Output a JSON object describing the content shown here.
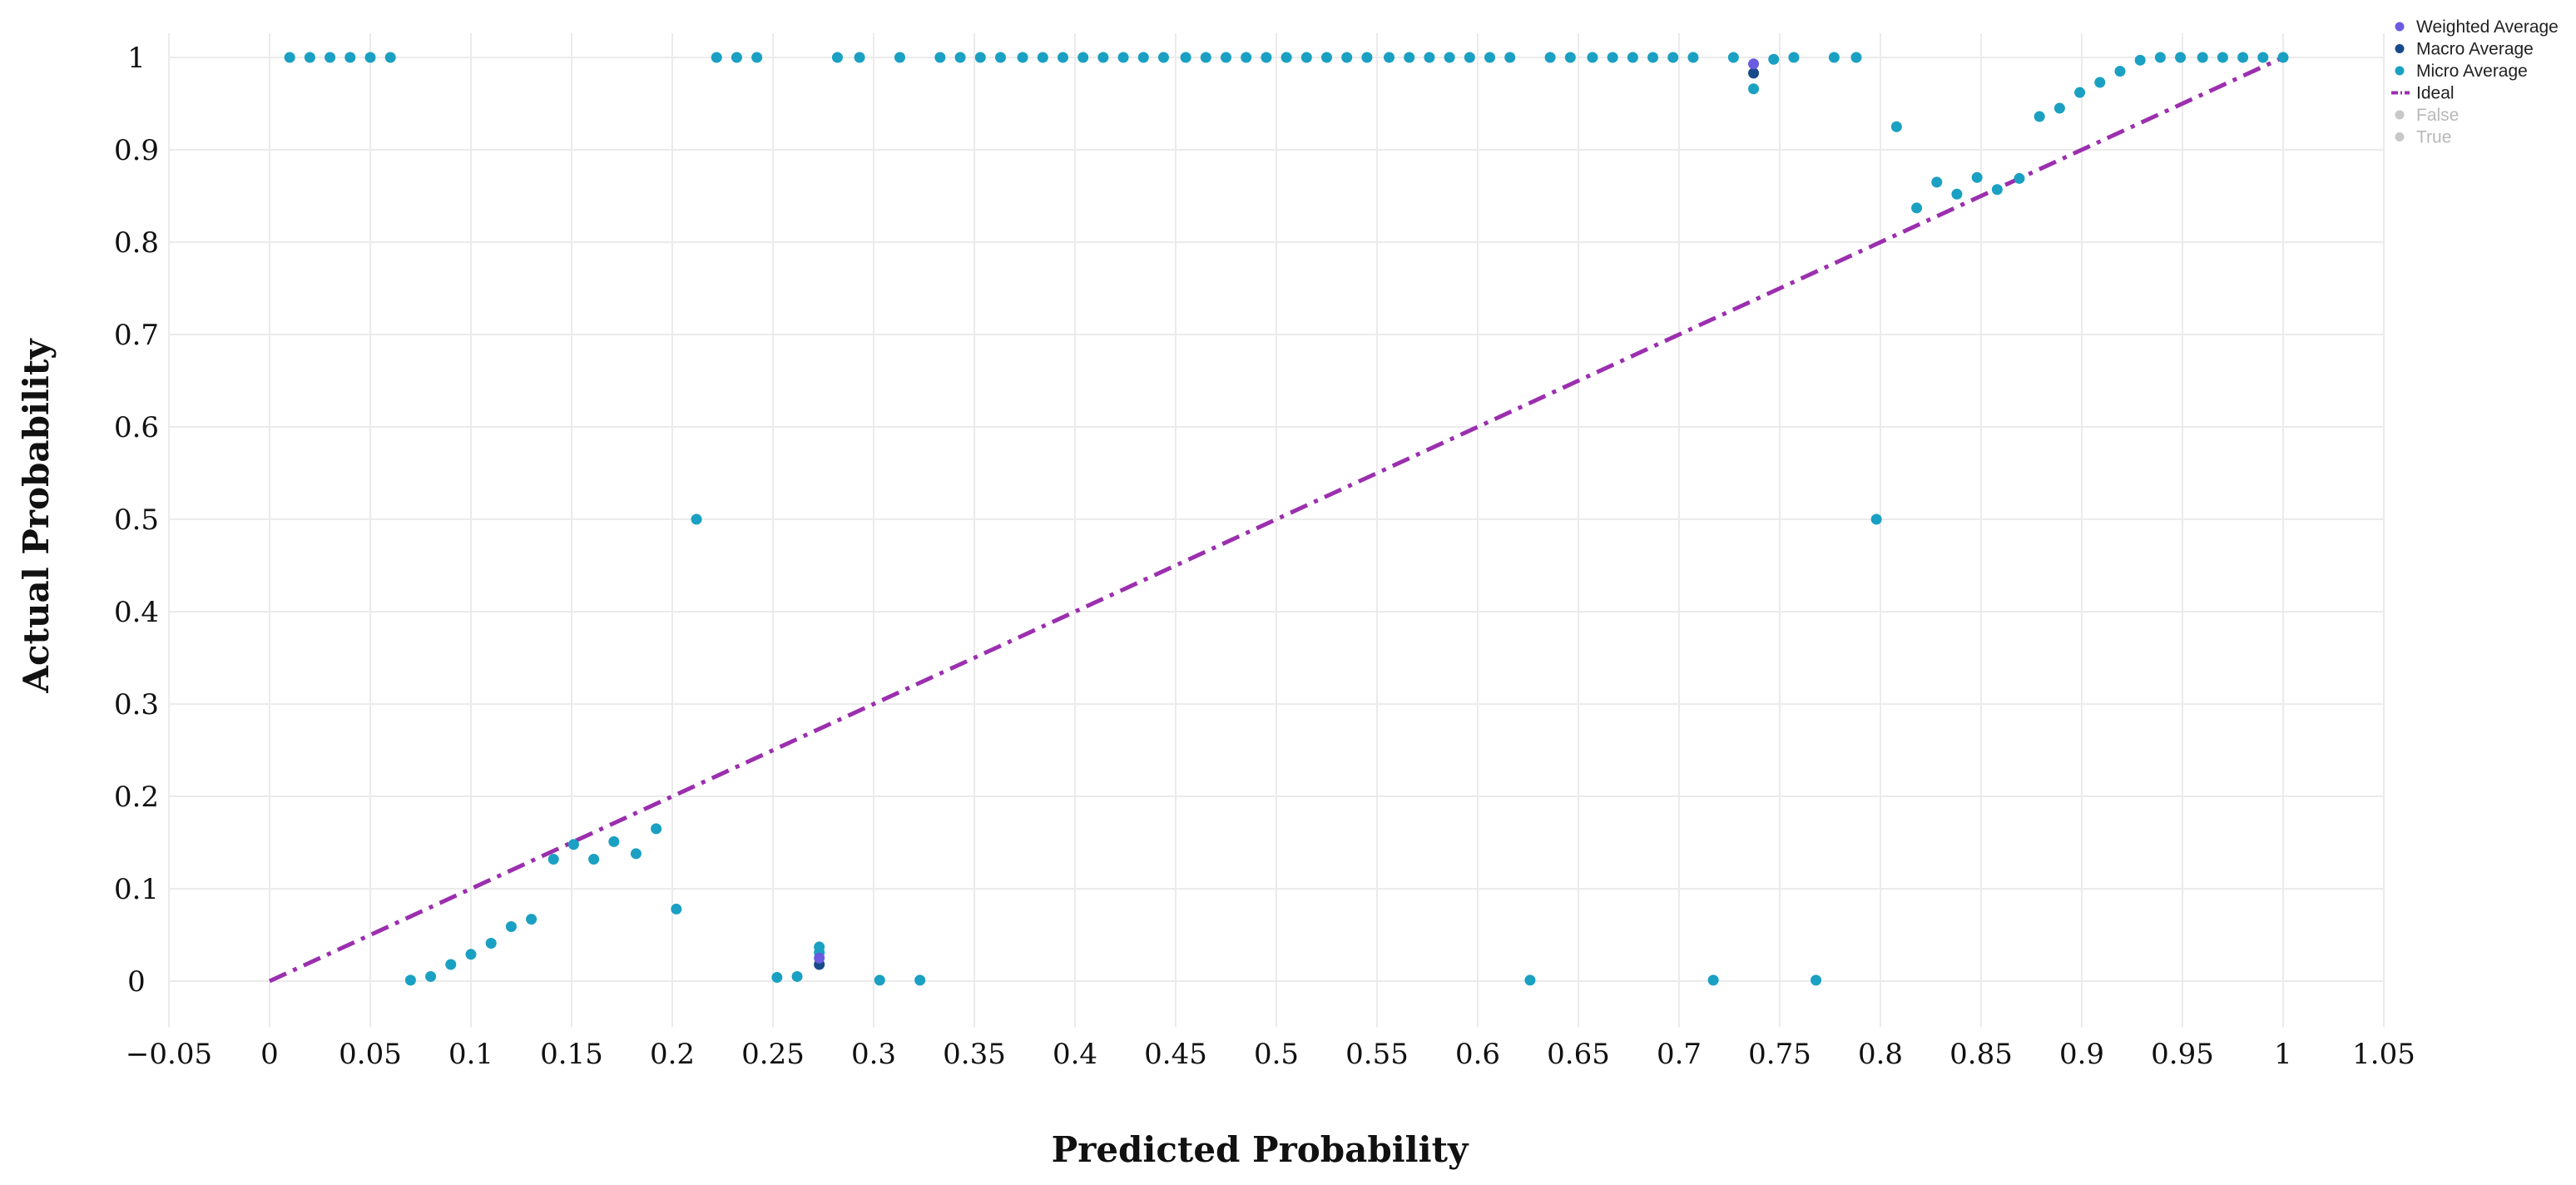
{
  "chart_data": {
    "type": "scatter",
    "xlabel": "Predicted Probability",
    "ylabel": "Actual Probability",
    "xlim": [
      -0.05,
      1.05
    ],
    "ylim": [
      -0.05,
      1.05
    ],
    "grid": true,
    "legend_position": "top-right",
    "x_ticks": [
      "−0.05",
      "0",
      "0.05",
      "0.1",
      "0.15",
      "0.2",
      "0.25",
      "0.3",
      "0.35",
      "0.4",
      "0.45",
      "0.5",
      "0.55",
      "0.6",
      "0.65",
      "0.7",
      "0.75",
      "0.8",
      "0.85",
      "0.9",
      "0.95",
      "1",
      "1.05"
    ],
    "y_ticks": [
      "0",
      "0.1",
      "0.2",
      "0.3",
      "0.4",
      "0.5",
      "0.6",
      "0.7",
      "0.8",
      "0.9",
      "1"
    ],
    "legend": [
      {
        "label": "Weighted Average",
        "color": "#6a5be0",
        "symbol": "dot",
        "muted": false
      },
      {
        "label": "Macro Average",
        "color": "#174a8a",
        "symbol": "dot",
        "muted": false
      },
      {
        "label": "Micro Average",
        "color": "#1aa0c2",
        "symbol": "dot",
        "muted": false
      },
      {
        "label": "Ideal",
        "color": "#9b2fae",
        "symbol": "dashdot",
        "muted": false
      },
      {
        "label": "False",
        "color": "#c8c8c8",
        "symbol": "dot",
        "muted": true
      },
      {
        "label": "True",
        "color": "#c8c8c8",
        "symbol": "dot",
        "muted": true
      }
    ],
    "series": [
      {
        "name": "Weighted Average",
        "color": "#6a5be0",
        "x": [
          0.737,
          0.273
        ],
        "y": [
          0.993,
          0.025
        ]
      },
      {
        "name": "Macro Average",
        "color": "#174a8a",
        "x": [
          0.737,
          0.273
        ],
        "y": [
          0.983,
          0.018
        ]
      },
      {
        "name": "Micro Average",
        "color": "#1aa0c2",
        "x": [
          0.01,
          0.02,
          0.03,
          0.04,
          0.05,
          0.06,
          0.222,
          0.232,
          0.242,
          0.282,
          0.293,
          0.313,
          0.333,
          0.343,
          0.353,
          0.363,
          0.374,
          0.384,
          0.394,
          0.404,
          0.414,
          0.424,
          0.434,
          0.444,
          0.455,
          0.465,
          0.475,
          0.485,
          0.495,
          0.505,
          0.515,
          0.525,
          0.535,
          0.545,
          0.556,
          0.566,
          0.576,
          0.586,
          0.596,
          0.606,
          0.616,
          0.636,
          0.646,
          0.657,
          0.667,
          0.677,
          0.687,
          0.697,
          0.707,
          0.727,
          0.747,
          0.757,
          0.777,
          0.788,
          0.737,
          0.07,
          0.08,
          0.09,
          0.1,
          0.11,
          0.12,
          0.13,
          0.141,
          0.151,
          0.161,
          0.171,
          0.182,
          0.192,
          0.202,
          0.212,
          0.252,
          0.262,
          0.273,
          0.273,
          0.303,
          0.323,
          0.626,
          0.717,
          0.768,
          0.798,
          0.808,
          0.818,
          0.828,
          0.838,
          0.848,
          0.858,
          0.869,
          0.879,
          0.889,
          0.899,
          0.909,
          0.919,
          0.929,
          0.939,
          0.949,
          0.96,
          0.97,
          0.98,
          0.99,
          1.0
        ],
        "y": [
          1,
          1,
          1,
          1,
          1,
          1,
          1,
          1,
          1,
          1,
          1,
          1,
          1,
          1,
          1,
          1,
          1,
          1,
          1,
          1,
          1,
          1,
          1,
          1,
          1,
          1,
          1,
          1,
          1,
          1,
          1,
          1,
          1,
          1,
          1,
          1,
          1,
          1,
          1,
          1,
          1,
          1,
          1,
          1,
          1,
          1,
          1,
          1,
          1,
          1,
          0.998,
          1,
          1,
          1,
          0.966,
          0.001,
          0.005,
          0.018,
          0.029,
          0.041,
          0.059,
          0.067,
          0.132,
          0.148,
          0.132,
          0.151,
          0.138,
          0.165,
          0.078,
          0.5,
          0.004,
          0.005,
          0.037,
          0.031,
          0.001,
          0.001,
          0.001,
          0.001,
          0.001,
          0.5,
          0.925,
          0.837,
          0.865,
          0.852,
          0.87,
          0.857,
          0.869,
          0.936,
          0.945,
          0.962,
          0.973,
          0.985,
          0.997,
          1,
          1,
          1,
          1,
          1,
          1,
          1
        ]
      },
      {
        "name": "Ideal",
        "color": "#9b2fae",
        "style": "dashdot",
        "x": [
          0,
          1
        ],
        "y": [
          0,
          1
        ]
      }
    ]
  }
}
